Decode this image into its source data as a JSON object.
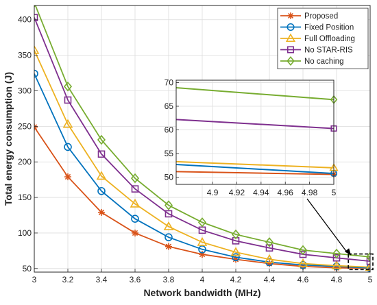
{
  "chart_data": {
    "type": "line",
    "xlabel": "Network bandwidth (MHz)",
    "ylabel": "Total energy consumption (J)",
    "xlim": [
      3,
      5
    ],
    "ylim": [
      45,
      420
    ],
    "x_ticks": [
      "3",
      "3.2",
      "3.4",
      "3.6",
      "3.8",
      "4",
      "4.2",
      "4.4",
      "4.6",
      "4.8",
      "5"
    ],
    "y_ticks": [
      "50",
      "100",
      "150",
      "200",
      "250",
      "300",
      "350",
      "400"
    ],
    "grid": true,
    "legend_position": "top-right",
    "x": [
      3.0,
      3.2,
      3.4,
      3.6,
      3.8,
      4.0,
      4.2,
      4.4,
      4.6,
      4.8,
      5.0
    ],
    "series": [
      {
        "name": "Proposed",
        "color": "#d95319",
        "marker": "star",
        "values": [
          249,
          179,
          129,
          100,
          81,
          70,
          63,
          57,
          53,
          51,
          50.6
        ]
      },
      {
        "name": "Fixed Position",
        "color": "#0072bd",
        "marker": "circle",
        "values": [
          324,
          221,
          159,
          120,
          94,
          77,
          66,
          59,
          55,
          53,
          50.8
        ]
      },
      {
        "name": "Full Offloading",
        "color": "#edb120",
        "marker": "triangle",
        "values": [
          357,
          253,
          180,
          141,
          109,
          87,
          73,
          63,
          57,
          54,
          52
        ]
      },
      {
        "name": "No STAR-RIS",
        "color": "#7e2f8e",
        "marker": "square",
        "values": [
          403,
          287,
          211,
          162,
          127,
          104,
          89,
          79,
          70,
          65,
          60.3
        ]
      },
      {
        "name": "No caching",
        "color": "#77ac30",
        "marker": "diamond",
        "values": [
          424,
          306,
          231,
          177,
          139,
          115,
          98,
          87,
          76,
          71,
          66.4
        ]
      }
    ],
    "inset": {
      "xlim": [
        4.87,
        5.0
      ],
      "ylim": [
        48.5,
        70.5
      ],
      "x_ticks": [
        "4.9",
        "4.92",
        "4.94",
        "4.96",
        "4.98",
        "5"
      ],
      "y_ticks": [
        "50",
        "55",
        "60",
        "65",
        "70"
      ],
      "x": [
        4.87,
        5.0
      ],
      "series_values": [
        [
          51.2,
          50.6
        ],
        [
          52.7,
          50.8
        ],
        [
          53.3,
          52.0
        ],
        [
          62.2,
          60.3
        ],
        [
          68.9,
          66.4
        ]
      ]
    }
  }
}
